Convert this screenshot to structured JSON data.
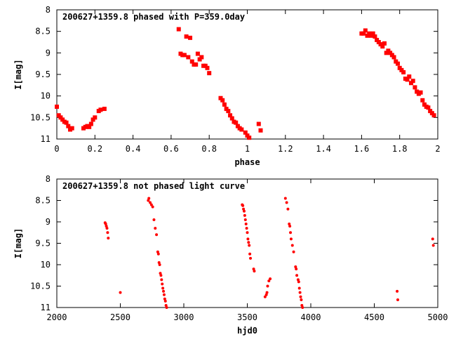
{
  "point_color": "#ff0000",
  "chart_data": [
    {
      "type": "scatter",
      "title": "200627+1359.8 phased with P=359.0day",
      "xlabel": "phase",
      "ylabel": "I[mag]",
      "xlim": [
        0,
        2
      ],
      "ylim": [
        11,
        8
      ],
      "y_inverted": true,
      "xticks": [
        "0",
        "0.2",
        "0.4",
        "0.6",
        "0.8",
        "1",
        "1.2",
        "1.4",
        "1.6",
        "1.8",
        "2"
      ],
      "yticks": [
        "8",
        "8.5",
        "9",
        "9.5",
        "10",
        "10.5",
        "11"
      ],
      "grid": false,
      "marker": "square",
      "points": [
        [
          0.0,
          10.25
        ],
        [
          0.01,
          10.45
        ],
        [
          0.02,
          10.5
        ],
        [
          0.03,
          10.55
        ],
        [
          0.04,
          10.6
        ],
        [
          0.05,
          10.62
        ],
        [
          0.06,
          10.7
        ],
        [
          0.07,
          10.78
        ],
        [
          0.08,
          10.75
        ],
        [
          0.14,
          10.75
        ],
        [
          0.15,
          10.72
        ],
        [
          0.16,
          10.7
        ],
        [
          0.17,
          10.72
        ],
        [
          0.18,
          10.65
        ],
        [
          0.19,
          10.55
        ],
        [
          0.2,
          10.5
        ],
        [
          0.22,
          10.35
        ],
        [
          0.23,
          10.32
        ],
        [
          0.25,
          10.3
        ],
        [
          0.64,
          8.45
        ],
        [
          0.65,
          9.02
        ],
        [
          0.66,
          9.05
        ],
        [
          0.67,
          9.05
        ],
        [
          0.68,
          8.62
        ],
        [
          0.69,
          9.1
        ],
        [
          0.7,
          8.65
        ],
        [
          0.71,
          9.2
        ],
        [
          0.72,
          9.27
        ],
        [
          0.73,
          9.27
        ],
        [
          0.74,
          9.02
        ],
        [
          0.75,
          9.15
        ],
        [
          0.76,
          9.1
        ],
        [
          0.77,
          9.3
        ],
        [
          0.78,
          9.3
        ],
        [
          0.79,
          9.35
        ],
        [
          0.8,
          9.47
        ],
        [
          0.86,
          10.05
        ],
        [
          0.87,
          10.1
        ],
        [
          0.88,
          10.2
        ],
        [
          0.89,
          10.3
        ],
        [
          0.9,
          10.35
        ],
        [
          0.91,
          10.45
        ],
        [
          0.92,
          10.52
        ],
        [
          0.93,
          10.6
        ],
        [
          0.94,
          10.62
        ],
        [
          0.95,
          10.7
        ],
        [
          0.96,
          10.75
        ],
        [
          0.97,
          10.78
        ],
        [
          0.99,
          10.85
        ],
        [
          1.0,
          10.92
        ],
        [
          1.01,
          10.97
        ],
        [
          1.06,
          10.65
        ],
        [
          1.07,
          10.8
        ],
        [
          1.6,
          8.55
        ],
        [
          1.61,
          8.55
        ],
        [
          1.62,
          8.48
        ],
        [
          1.63,
          8.6
        ],
        [
          1.64,
          8.55
        ],
        [
          1.65,
          8.6
        ],
        [
          1.66,
          8.55
        ],
        [
          1.67,
          8.62
        ],
        [
          1.68,
          8.7
        ],
        [
          1.69,
          8.75
        ],
        [
          1.7,
          8.8
        ],
        [
          1.71,
          8.85
        ],
        [
          1.72,
          8.78
        ],
        [
          1.73,
          9.0
        ],
        [
          1.74,
          8.95
        ],
        [
          1.75,
          9.0
        ],
        [
          1.76,
          9.05
        ],
        [
          1.77,
          9.1
        ],
        [
          1.78,
          9.2
        ],
        [
          1.79,
          9.25
        ],
        [
          1.8,
          9.35
        ],
        [
          1.81,
          9.4
        ],
        [
          1.82,
          9.45
        ],
        [
          1.83,
          9.6
        ],
        [
          1.84,
          9.62
        ],
        [
          1.85,
          9.55
        ],
        [
          1.86,
          9.7
        ],
        [
          1.87,
          9.65
        ],
        [
          1.88,
          9.8
        ],
        [
          1.89,
          9.9
        ],
        [
          1.9,
          9.95
        ],
        [
          1.91,
          9.92
        ],
        [
          1.92,
          10.1
        ],
        [
          1.93,
          10.2
        ],
        [
          1.94,
          10.25
        ],
        [
          1.95,
          10.27
        ],
        [
          1.96,
          10.35
        ],
        [
          1.97,
          10.4
        ],
        [
          1.98,
          10.45
        ]
      ]
    },
    {
      "type": "scatter",
      "title": "200627+1359.8 not phased light curve",
      "xlabel": "hjd0",
      "ylabel": "I[mag]",
      "xlim": [
        2000,
        5000
      ],
      "ylim": [
        11,
        8
      ],
      "y_inverted": true,
      "xticks": [
        "2000",
        "2500",
        "3000",
        "3500",
        "4000",
        "4500",
        "5000"
      ],
      "yticks": [
        "8",
        "8.5",
        "9",
        "9.5",
        "10",
        "10.5",
        "11"
      ],
      "grid": false,
      "marker": "circle",
      "points": [
        [
          2380,
          9.02
        ],
        [
          2385,
          9.05
        ],
        [
          2390,
          9.1
        ],
        [
          2395,
          9.15
        ],
        [
          2400,
          9.25
        ],
        [
          2405,
          9.38
        ],
        [
          2500,
          10.65
        ],
        [
          2720,
          8.5
        ],
        [
          2725,
          8.45
        ],
        [
          2735,
          8.55
        ],
        [
          2745,
          8.6
        ],
        [
          2755,
          8.65
        ],
        [
          2765,
          8.95
        ],
        [
          2775,
          9.15
        ],
        [
          2785,
          9.3
        ],
        [
          2795,
          9.7
        ],
        [
          2800,
          9.75
        ],
        [
          2805,
          9.95
        ],
        [
          2810,
          10.0
        ],
        [
          2815,
          10.2
        ],
        [
          2820,
          10.25
        ],
        [
          2825,
          10.35
        ],
        [
          2830,
          10.45
        ],
        [
          2835,
          10.55
        ],
        [
          2840,
          10.62
        ],
        [
          2845,
          10.7
        ],
        [
          2850,
          10.8
        ],
        [
          2855,
          10.85
        ],
        [
          2860,
          10.95
        ],
        [
          2865,
          11.0
        ],
        [
          3460,
          8.6
        ],
        [
          3465,
          8.62
        ],
        [
          3470,
          8.7
        ],
        [
          3475,
          8.75
        ],
        [
          3480,
          8.85
        ],
        [
          3485,
          8.95
        ],
        [
          3490,
          9.05
        ],
        [
          3495,
          9.15
        ],
        [
          3500,
          9.25
        ],
        [
          3505,
          9.4
        ],
        [
          3510,
          9.48
        ],
        [
          3515,
          9.55
        ],
        [
          3520,
          9.75
        ],
        [
          3525,
          9.85
        ],
        [
          3550,
          10.1
        ],
        [
          3555,
          10.15
        ],
        [
          3640,
          10.75
        ],
        [
          3650,
          10.7
        ],
        [
          3655,
          10.65
        ],
        [
          3660,
          10.5
        ],
        [
          3670,
          10.38
        ],
        [
          3680,
          10.33
        ],
        [
          3800,
          8.45
        ],
        [
          3810,
          8.55
        ],
        [
          3820,
          8.7
        ],
        [
          3830,
          9.05
        ],
        [
          3835,
          9.1
        ],
        [
          3840,
          9.25
        ],
        [
          3845,
          9.4
        ],
        [
          3855,
          9.55
        ],
        [
          3865,
          9.7
        ],
        [
          3880,
          10.05
        ],
        [
          3885,
          10.1
        ],
        [
          3890,
          10.25
        ],
        [
          3900,
          10.35
        ],
        [
          3905,
          10.4
        ],
        [
          3910,
          10.55
        ],
        [
          3915,
          10.65
        ],
        [
          3920,
          10.75
        ],
        [
          3925,
          10.82
        ],
        [
          3930,
          10.95
        ],
        [
          3935,
          11.0
        ],
        [
          4680,
          10.62
        ],
        [
          4685,
          10.82
        ],
        [
          4960,
          9.4
        ],
        [
          4965,
          9.55
        ]
      ]
    }
  ]
}
